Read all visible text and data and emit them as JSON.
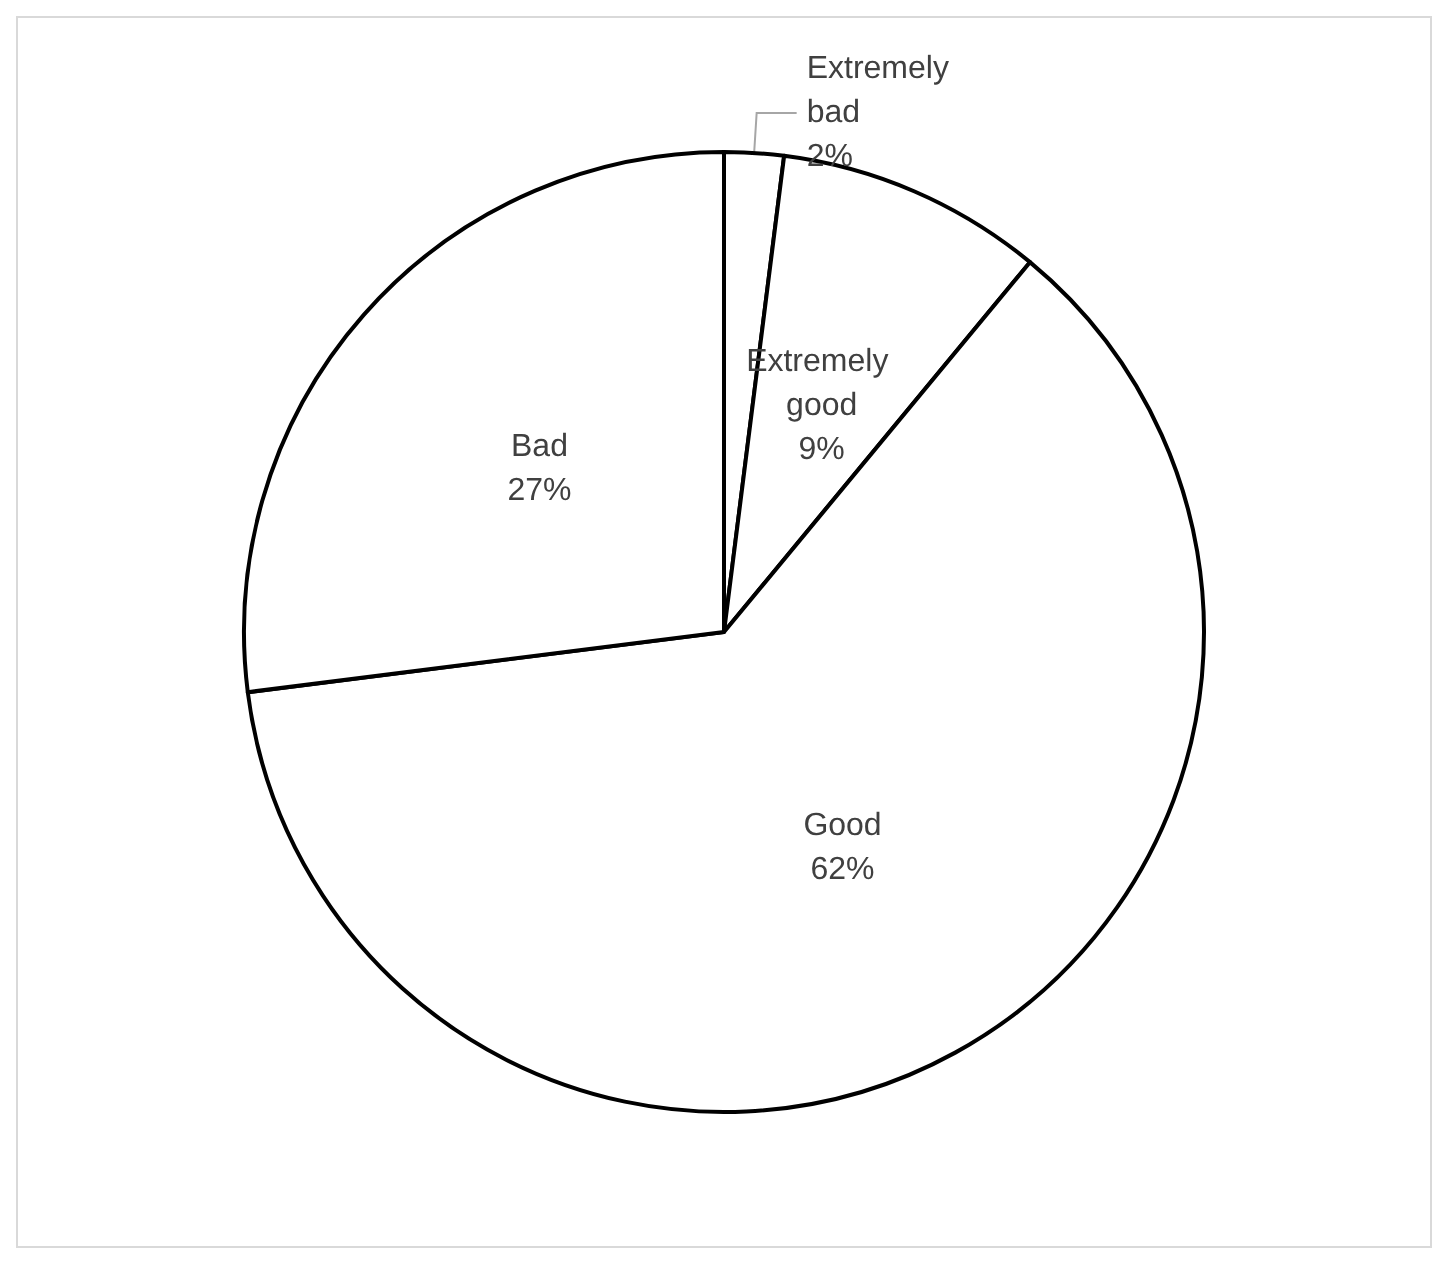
{
  "chart_data": {
    "type": "pie",
    "categories": [
      "Extremely bad",
      "Extremely good",
      "Good",
      "Bad"
    ],
    "values": [
      2,
      9,
      62,
      27
    ],
    "colors": [
      "#ffffff",
      "#ffffff",
      "#ffffff",
      "#ffffff"
    ],
    "value_labels": [
      "2%",
      "9%",
      "62%",
      "27%"
    ],
    "legend": false
  }
}
